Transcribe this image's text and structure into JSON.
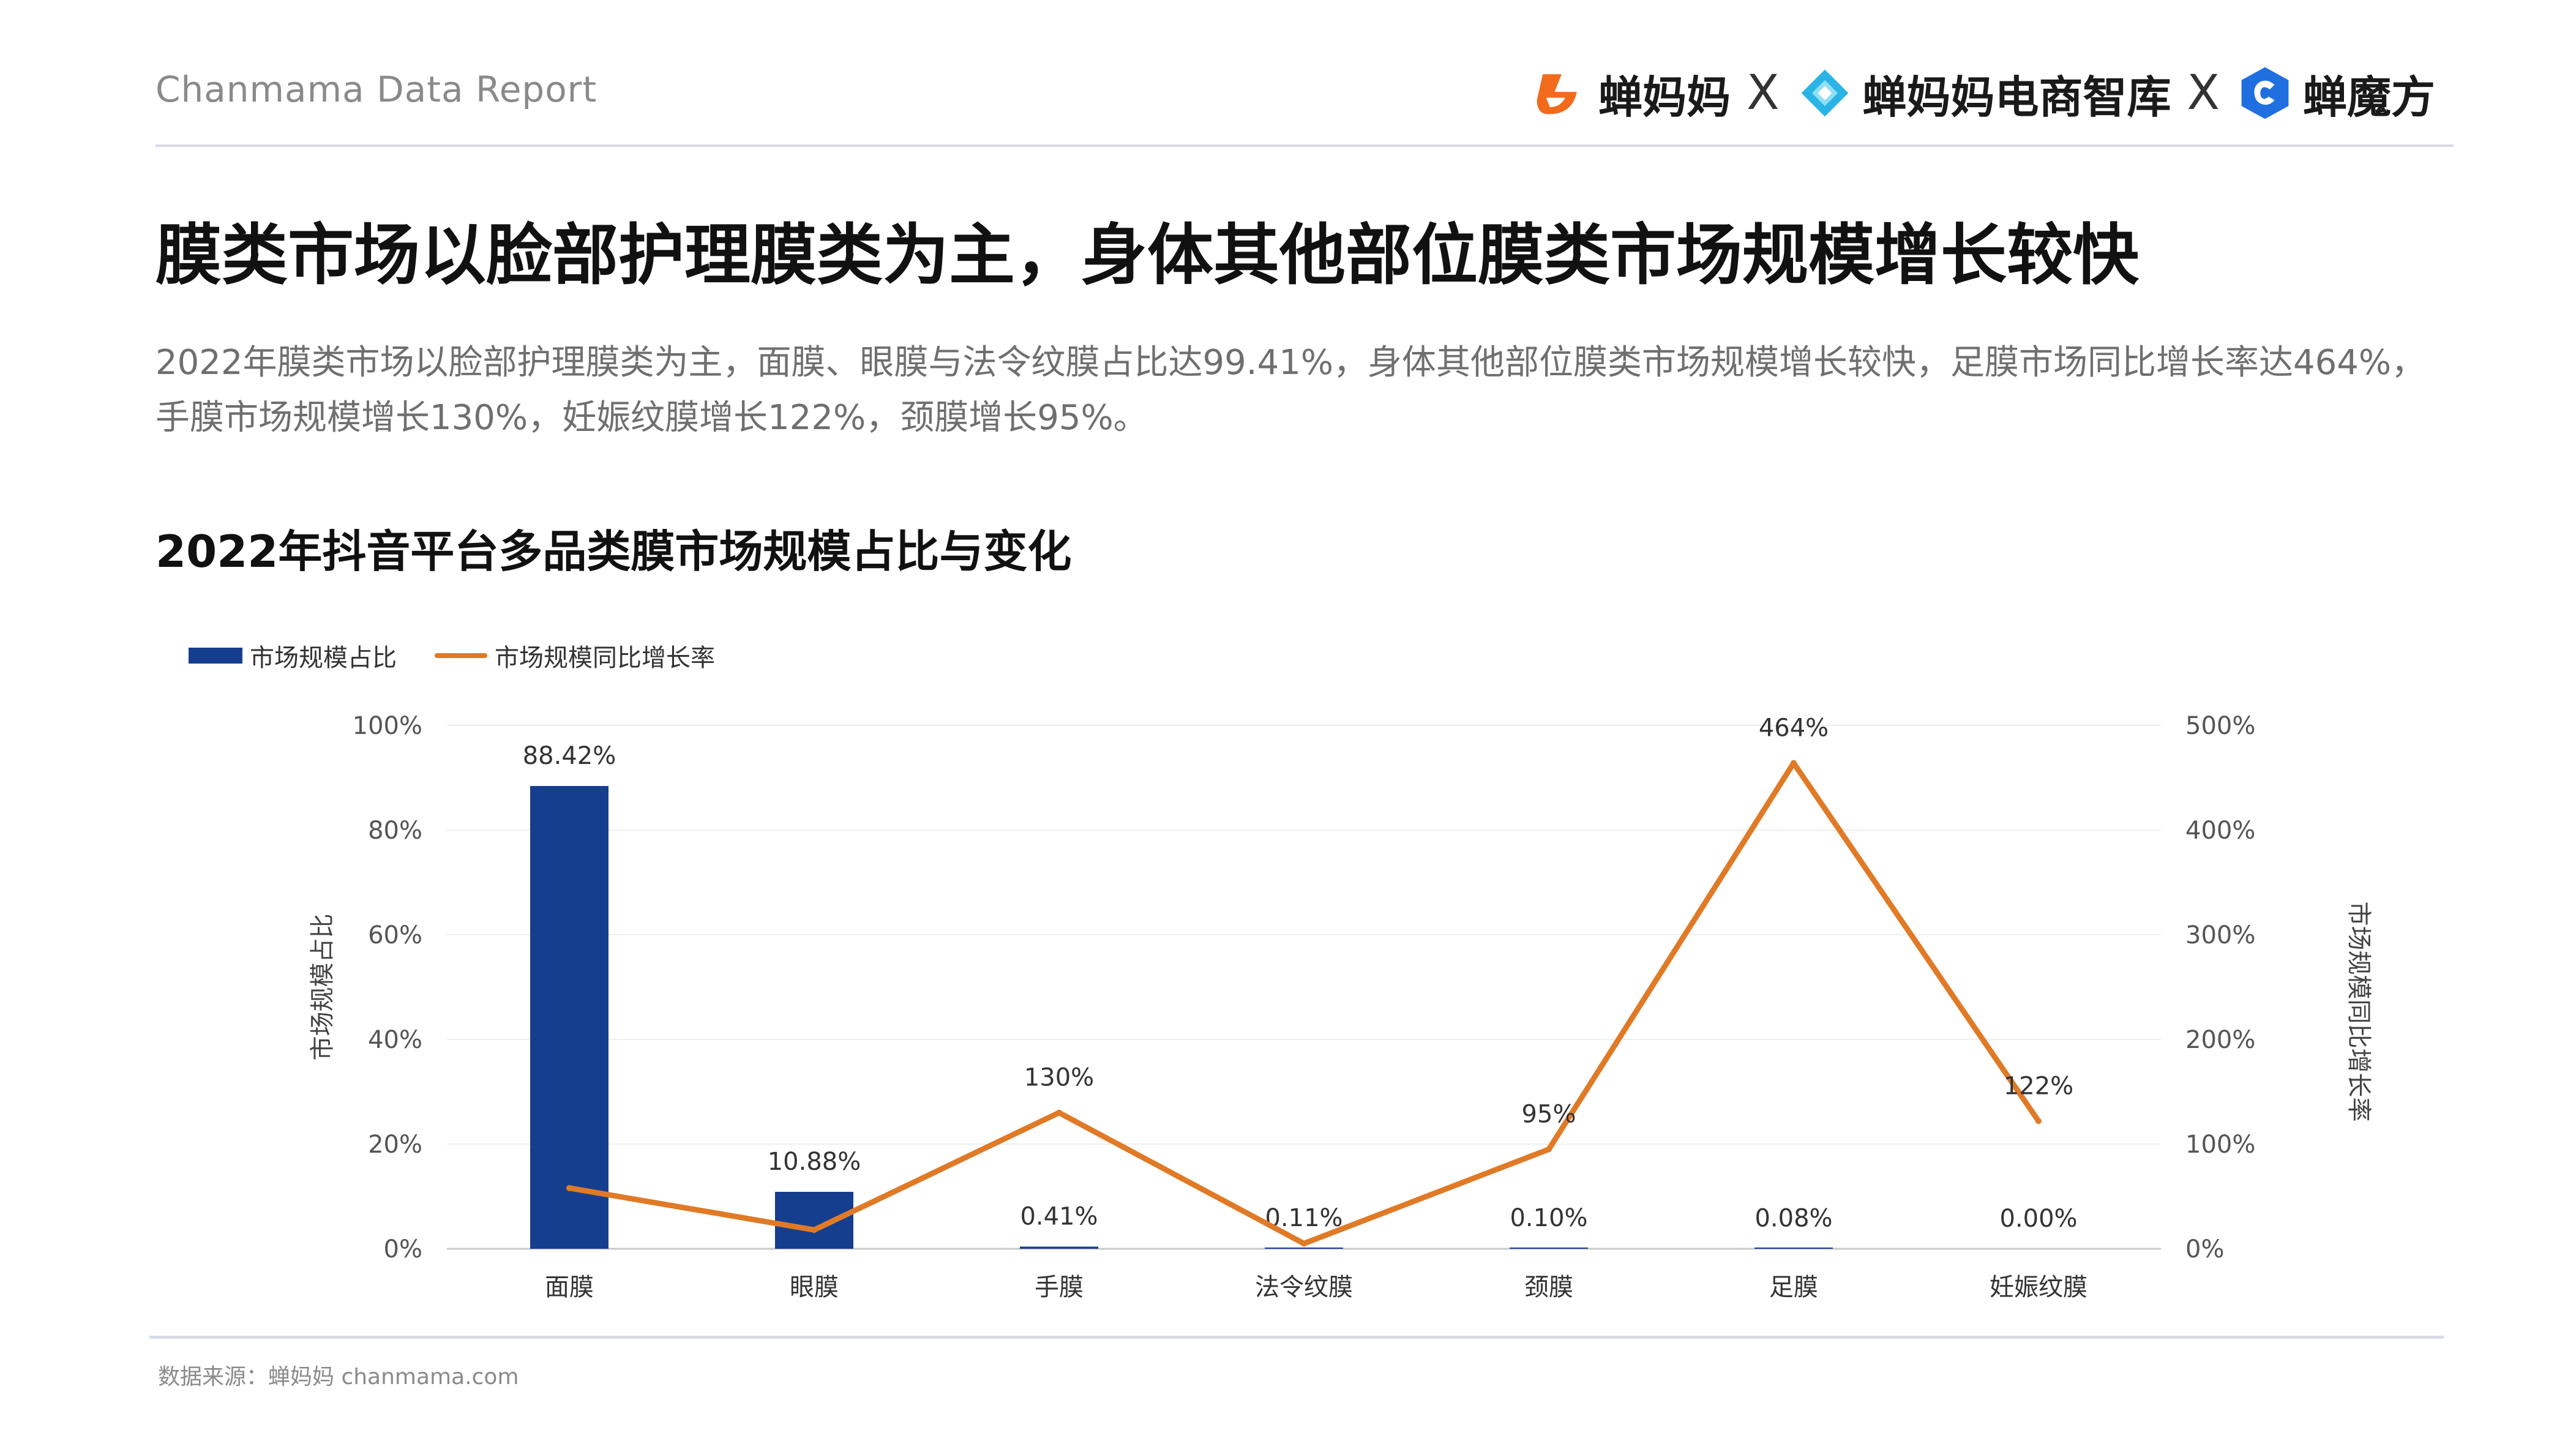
{
  "header": {
    "report_label": "Chanmama Data Report",
    "logos": [
      {
        "name": "蝉妈妈",
        "color": "#f26b1d"
      },
      {
        "name": "蝉妈妈电商智库",
        "color": "#2ab4e6"
      },
      {
        "name": "蝉魔方",
        "color": "#1f6fe0"
      }
    ],
    "separator": "X"
  },
  "title": "膜类市场以脸部护理膜类为主，身体其他部位膜类市场规模增长较快",
  "description": "2022年膜类市场以脸部护理膜类为主，面膜、眼膜与法令纹膜占比达99.41%，身体其他部位膜类市场规模增长较快，足膜市场同比增长率达464%，手膜市场规模增长130%，妊娠纹膜增长122%，颈膜增长95%。",
  "chart_title": "2022年抖音平台多品类膜市场规模占比与变化",
  "footer": {
    "source": "数据来源：蝉妈妈 chanmama.com"
  },
  "chart_data": {
    "type": "bar+line",
    "categories": [
      "面膜",
      "眼膜",
      "手膜",
      "法令纹膜",
      "颈膜",
      "足膜",
      "妊娠纹膜"
    ],
    "series": [
      {
        "name": "市场规模占比",
        "type": "bar",
        "axis": "left",
        "values": [
          88.42,
          10.88,
          0.41,
          0.11,
          0.1,
          0.08,
          0.0
        ],
        "labels": [
          "88.42%",
          "10.88%",
          "0.41%",
          "0.11%",
          "0.10%",
          "0.08%",
          "0.00%"
        ],
        "color": "#163e8e"
      },
      {
        "name": "市场规模同比增长率",
        "type": "line",
        "axis": "right",
        "values": [
          58,
          18,
          130,
          5,
          95,
          464,
          122
        ],
        "labels": [
          "",
          "",
          "130%",
          "",
          "95%",
          "464%",
          "122%"
        ],
        "color": "#e07a26"
      }
    ],
    "y_left": {
      "label": "市场规模占比",
      "min": 0,
      "max": 100,
      "ticks": [
        "0%",
        "20%",
        "40%",
        "60%",
        "80%",
        "100%"
      ]
    },
    "y_right": {
      "label": "市场规模同比增长率",
      "min": 0,
      "max": 500,
      "ticks": [
        "0%",
        "100%",
        "200%",
        "300%",
        "400%",
        "500%"
      ]
    },
    "grid": true,
    "legend_position": "top-left"
  }
}
